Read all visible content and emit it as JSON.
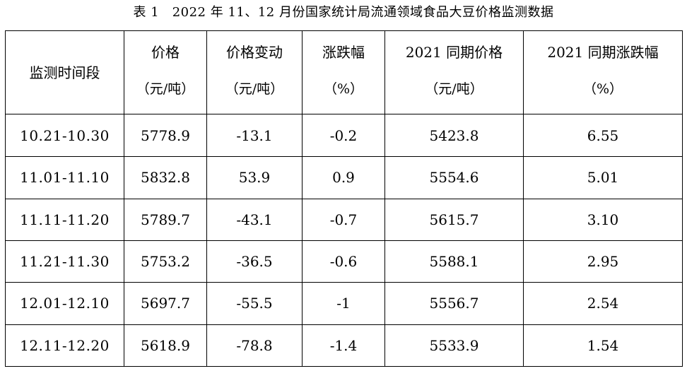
{
  "caption": "表 1　2022 年 11、12 月份国家统计局流通领域食品大豆价格监测数据",
  "headers": [
    {
      "line1": "监测时间段",
      "line2": ""
    },
    {
      "line1": "价格",
      "line2": "（元/吨）"
    },
    {
      "line1": "价格变动",
      "line2": "（元/吨）"
    },
    {
      "line1": "涨跌幅",
      "line2": "（%）"
    },
    {
      "line1": "2021 同期价格",
      "line2": "（元/吨）"
    },
    {
      "line1": "2021 同期涨跌幅",
      "line2": "（%）"
    }
  ],
  "rows": [
    [
      "10.21-10.30",
      "5778.9",
      "-13.1",
      "-0.2",
      "5423.8",
      "6.55"
    ],
    [
      "11.01-11.10",
      "5832.8",
      "53.9",
      "0.9",
      "5554.6",
      "5.01"
    ],
    [
      "11.11-11.20",
      "5789.7",
      "-43.1",
      "-0.7",
      "5615.7",
      "3.10"
    ],
    [
      "11.21-11.30",
      "5753.2",
      "-36.5",
      "-0.6",
      "5588.1",
      "2.95"
    ],
    [
      "12.01-12.10",
      "5697.7",
      "-55.5",
      "-1",
      "5556.7",
      "2.54"
    ],
    [
      "12.11-12.20",
      "5618.9",
      "-78.8",
      "-1.4",
      "5533.9",
      "1.54"
    ]
  ]
}
